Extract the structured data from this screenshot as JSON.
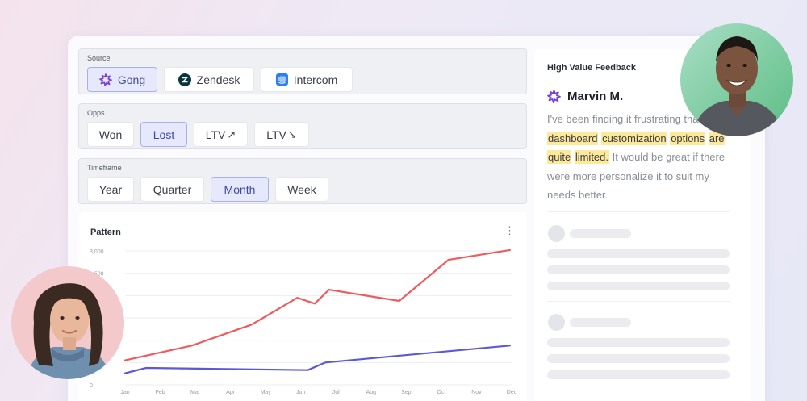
{
  "filters": {
    "source": {
      "label": "Source",
      "options": [
        {
          "label": "Gong",
          "icon": "gong-icon",
          "active": true
        },
        {
          "label": "Zendesk",
          "icon": "zendesk-icon",
          "active": false
        },
        {
          "label": "Intercom",
          "icon": "intercom-icon",
          "active": false
        }
      ]
    },
    "opps": {
      "label": "Opps",
      "options": [
        {
          "label": "Won",
          "active": false
        },
        {
          "label": "Lost",
          "active": true
        },
        {
          "label": "LTV",
          "icon": "arrow-up-right-icon",
          "active": false
        },
        {
          "label": "LTV",
          "icon": "arrow-down-right-icon",
          "active": false
        }
      ]
    },
    "timeframe": {
      "label": "Timeframe",
      "options": [
        {
          "label": "Year",
          "active": false
        },
        {
          "label": "Quarter",
          "active": false
        },
        {
          "label": "Month",
          "active": true
        },
        {
          "label": "Week",
          "active": false
        }
      ]
    }
  },
  "chart": {
    "title": "Pattern",
    "menu_icon": "more-vertical-icon"
  },
  "chart_data": {
    "type": "line",
    "title": "Pattern",
    "xlabel": "",
    "ylabel": "",
    "x": [
      "Jan",
      "Feb",
      "Mar",
      "Apr",
      "May",
      "Jun",
      "Jul",
      "Aug",
      "Sep",
      "Oct",
      "Nov",
      "Dec"
    ],
    "y_ticks": [
      "0",
      "500",
      "1,000",
      "1,500",
      "2,000",
      "2,500",
      "3,000"
    ],
    "ylim": [
      0,
      3000
    ],
    "grid": true,
    "series": [
      {
        "color": "#f05a5e",
        "points": [
          [
            0,
            550
          ],
          [
            1.9,
            880
          ],
          [
            3.6,
            1350
          ],
          [
            4.9,
            1950
          ],
          [
            5.4,
            1820
          ],
          [
            5.8,
            2130
          ],
          [
            7.8,
            1880
          ],
          [
            9.2,
            2800
          ],
          [
            10.95,
            3020
          ]
        ]
      },
      {
        "color": "#5a5ad6",
        "points": [
          [
            0,
            260
          ],
          [
            0.6,
            380
          ],
          [
            5.2,
            330
          ],
          [
            5.7,
            500
          ],
          [
            10.95,
            880
          ]
        ]
      }
    ]
  },
  "feedback": {
    "heading": "High Value Feedback",
    "author": "Marvin M.",
    "author_icon": "gong-icon",
    "text_before": "I've been finding it frustrating that ",
    "highlighted": [
      "dashboard",
      "customization",
      "options",
      "are",
      "quite",
      "limited."
    ],
    "text_after": " It would be great if there were more personalize it to suit my needs better."
  },
  "colors": {
    "accent": "#4048a8",
    "active_chip_bg": "#e6e8fb",
    "highlight": "#fde99a",
    "series_red": "#f05a5e",
    "series_blue": "#5a5ad6"
  }
}
